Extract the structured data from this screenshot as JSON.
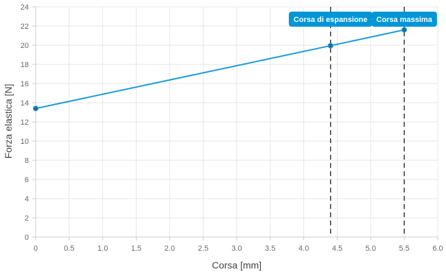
{
  "chart_data": {
    "type": "line",
    "xlabel": "Corsa [mm]",
    "ylabel": "Forza elastica [N]",
    "xlim": [
      0,
      6
    ],
    "ylim": [
      0,
      24
    ],
    "x_ticks": [
      "0",
      "0.5",
      "1.0",
      "1.5",
      "2.0",
      "2.5",
      "3.0",
      "3.5",
      "4.0",
      "4.5",
      "5.0",
      "5.5",
      "6.0"
    ],
    "y_ticks": [
      "0",
      "2",
      "4",
      "6",
      "8",
      "10",
      "12",
      "14",
      "16",
      "18",
      "20",
      "22",
      "24"
    ],
    "grid": true,
    "series": [
      {
        "color": "#1a9bd7",
        "points": [
          {
            "x": 0,
            "y": 13.4
          },
          {
            "x": 4.4,
            "y": 19.95
          },
          {
            "x": 5.5,
            "y": 21.6
          }
        ]
      }
    ],
    "annotations": [
      {
        "label": "Corsa di espansione",
        "x": 4.4,
        "color": "#0096d6"
      },
      {
        "label": "Corsa massima",
        "x": 5.5,
        "color": "#0096d6"
      }
    ]
  }
}
